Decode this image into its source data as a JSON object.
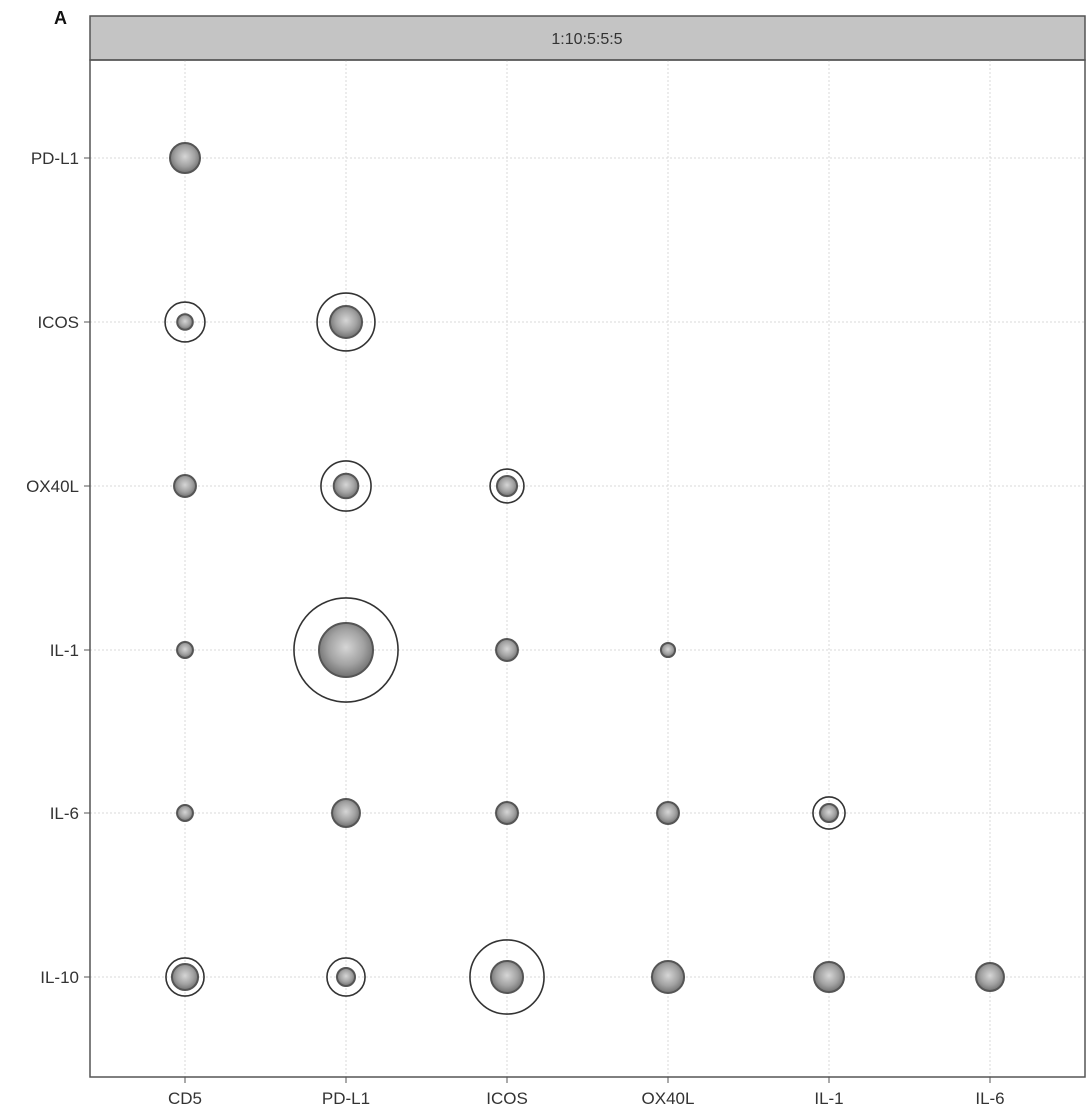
{
  "panel_label": "A",
  "chart_data": {
    "type": "scatter",
    "title": "1:10:5:5:5",
    "xlabel": "",
    "ylabel": "",
    "x_categories": [
      "CD5",
      "PD-L1",
      "ICOS",
      "OX40L",
      "IL-1",
      "IL-6"
    ],
    "y_categories": [
      "PD-L1",
      "ICOS",
      "OX40L",
      "IL-1",
      "IL-6",
      "IL-10"
    ],
    "grid": true,
    "legend": "none",
    "colors": {
      "strip_fill": "#c4c4c4",
      "grid": "#d8d8d8",
      "frame": "#555555",
      "dot_fill": "#9a9a9a",
      "dot_dark": "#555555",
      "ring": "#333333"
    },
    "points": [
      {
        "x": "CD5",
        "y": "PD-L1",
        "size": 1.0,
        "ring": 0
      },
      {
        "x": "CD5",
        "y": "ICOS",
        "size": 0.52,
        "ring": 1.33
      },
      {
        "x": "PD-L1",
        "y": "ICOS",
        "size": 1.07,
        "ring": 1.93
      },
      {
        "x": "CD5",
        "y": "OX40L",
        "size": 0.73,
        "ring": 0
      },
      {
        "x": "PD-L1",
        "y": "OX40L",
        "size": 0.82,
        "ring": 1.67
      },
      {
        "x": "ICOS",
        "y": "OX40L",
        "size": 0.67,
        "ring": 1.13
      },
      {
        "x": "CD5",
        "y": "IL-1",
        "size": 0.53,
        "ring": 0
      },
      {
        "x": "PD-L1",
        "y": "IL-1",
        "size": 1.8,
        "ring": 3.47
      },
      {
        "x": "ICOS",
        "y": "IL-1",
        "size": 0.73,
        "ring": 0
      },
      {
        "x": "OX40L",
        "y": "IL-1",
        "size": 0.47,
        "ring": 0
      },
      {
        "x": "CD5",
        "y": "IL-6",
        "size": 0.53,
        "ring": 0
      },
      {
        "x": "PD-L1",
        "y": "IL-6",
        "size": 0.93,
        "ring": 0
      },
      {
        "x": "ICOS",
        "y": "IL-6",
        "size": 0.73,
        "ring": 0
      },
      {
        "x": "OX40L",
        "y": "IL-6",
        "size": 0.73,
        "ring": 0
      },
      {
        "x": "IL-1",
        "y": "IL-6",
        "size": 0.6,
        "ring": 1.07
      },
      {
        "x": "CD5",
        "y": "IL-10",
        "size": 0.87,
        "ring": 1.27
      },
      {
        "x": "PD-L1",
        "y": "IL-10",
        "size": 0.6,
        "ring": 1.27
      },
      {
        "x": "ICOS",
        "y": "IL-10",
        "size": 1.07,
        "ring": 2.47
      },
      {
        "x": "OX40L",
        "y": "IL-10",
        "size": 1.07,
        "ring": 0
      },
      {
        "x": "IL-1",
        "y": "IL-10",
        "size": 1.0,
        "ring": 0
      },
      {
        "x": "IL-6",
        "y": "IL-10",
        "size": 0.93,
        "ring": 0
      }
    ]
  }
}
